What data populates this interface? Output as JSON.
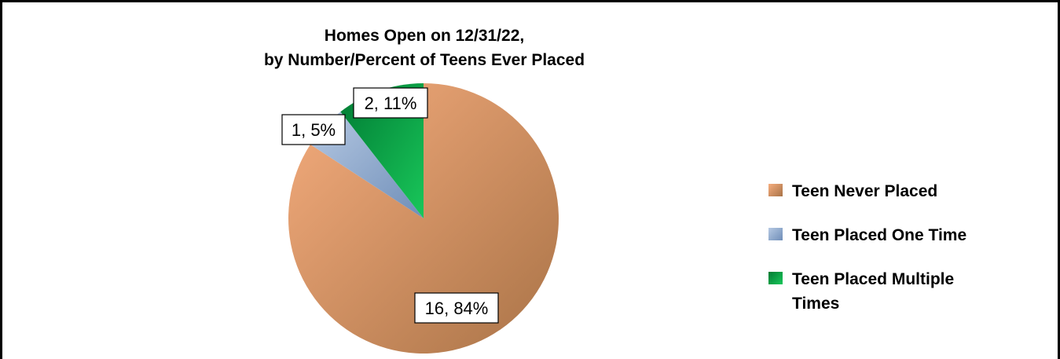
{
  "chart_data": {
    "type": "pie",
    "title": [
      "Homes Open on 12/31/22,",
      "by Number/Percent of Teens Ever Placed"
    ],
    "series": [
      {
        "name": "Teen Never Placed",
        "value": 16,
        "percent": 84,
        "label": "16, 84%",
        "color": "#d99565"
      },
      {
        "name": "Teen Placed One Time",
        "value": 1,
        "percent": 5,
        "label": "1, 5%",
        "color": "#8fa9cc"
      },
      {
        "name": "Teen Placed Multiple Times",
        "value": 2,
        "percent": 11,
        "label": "2, 11%",
        "color": "#0ea84a"
      }
    ],
    "legend_position": "right"
  }
}
